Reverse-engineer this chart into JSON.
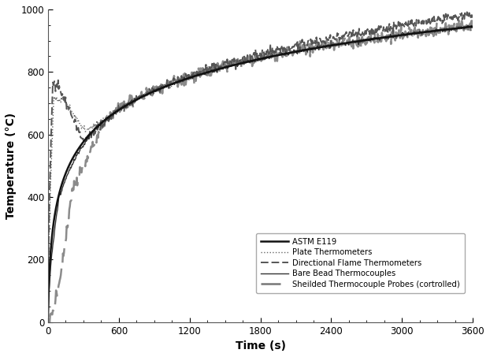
{
  "title": "",
  "xlabel": "Time (s)",
  "ylabel": "Temperature (°C)",
  "xlim": [
    0,
    3600
  ],
  "ylim": [
    0,
    1000
  ],
  "xticks": [
    0,
    600,
    1200,
    1800,
    2400,
    3000,
    3600
  ],
  "yticks": [
    0,
    200,
    400,
    600,
    800,
    1000
  ],
  "background_color": "#ffffff",
  "legend_entries": [
    "ASTM E119",
    "Plate Thermometers",
    "Directional Flame Thermometers",
    "Bare Bead Thermocouples",
    "Sheilded Thermocouple Probes (cortrolled)"
  ],
  "line_colors": [
    "#111111",
    "#666666",
    "#555555",
    "#333333",
    "#777777"
  ],
  "line_widths": [
    1.8,
    1.0,
    1.4,
    1.0,
    1.8
  ],
  "astm_end": 925,
  "plate_peak": 720,
  "plate_peak_t": 110,
  "plate_dip": 610,
  "plate_dip_t": 320,
  "dfm_peak": 760,
  "dfm_peak_t": 80,
  "dfm_end": 960,
  "bare_end": 930,
  "shield_end": 940
}
